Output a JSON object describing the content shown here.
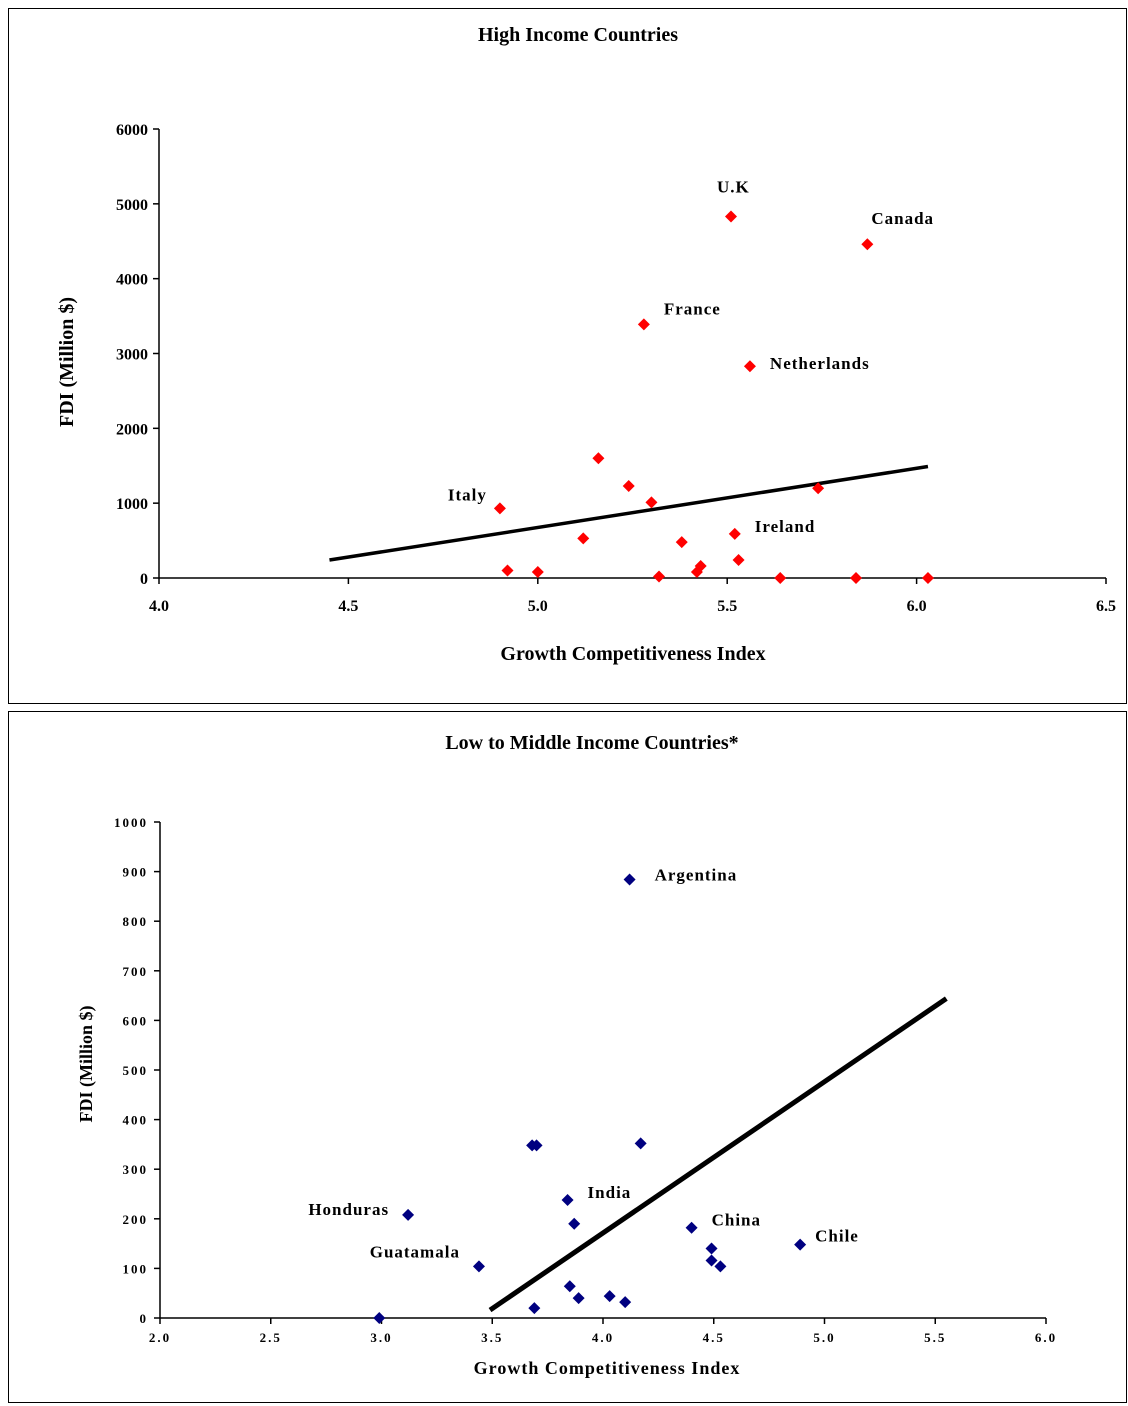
{
  "chart_data": [
    {
      "type": "scatter",
      "title": "High Income Countries",
      "xlabel": "Growth Competitiveness Index",
      "ylabel": "FDI (Million $)",
      "xlim": [
        4.0,
        6.5
      ],
      "ylim": [
        0,
        6000
      ],
      "x_ticks": [
        "4.0",
        "4.5",
        "5.0",
        "5.5",
        "6.0",
        "6.5"
      ],
      "y_ticks": [
        "0",
        "1000",
        "2000",
        "3000",
        "4000",
        "5000",
        "6000"
      ],
      "marker_color": "#ff0000",
      "grid": false,
      "points": [
        {
          "x": 5.51,
          "y": 4830,
          "label": "U.K"
        },
        {
          "x": 5.87,
          "y": 4460,
          "label": "Canada"
        },
        {
          "x": 5.28,
          "y": 3390,
          "label": "France"
        },
        {
          "x": 5.56,
          "y": 2830,
          "label": "Netherlands"
        },
        {
          "x": 4.9,
          "y": 930,
          "label": "Italy"
        },
        {
          "x": 5.52,
          "y": 590,
          "label": "Ireland"
        },
        {
          "x": 5.16,
          "y": 1600
        },
        {
          "x": 5.24,
          "y": 1230
        },
        {
          "x": 5.3,
          "y": 1010
        },
        {
          "x": 5.74,
          "y": 1200
        },
        {
          "x": 5.12,
          "y": 530
        },
        {
          "x": 5.38,
          "y": 480
        },
        {
          "x": 4.92,
          "y": 100
        },
        {
          "x": 5.0,
          "y": 80
        },
        {
          "x": 5.32,
          "y": 20
        },
        {
          "x": 5.42,
          "y": 80
        },
        {
          "x": 5.43,
          "y": 160
        },
        {
          "x": 5.53,
          "y": 240
        },
        {
          "x": 5.64,
          "y": 0
        },
        {
          "x": 5.84,
          "y": 0
        },
        {
          "x": 6.03,
          "y": 0
        }
      ],
      "trendline": {
        "x": [
          4.45,
          6.03
        ],
        "y": [
          240,
          1490
        ]
      }
    },
    {
      "type": "scatter",
      "title": "Low to Middle Income Countries*",
      "xlabel": "Growth Competitiveness Index",
      "ylabel": "FDI (Million $)",
      "xlim": [
        2.0,
        6.0
      ],
      "ylim": [
        0,
        1000
      ],
      "x_ticks": [
        "2.0",
        "2.5",
        "3.0",
        "3.5",
        "4.0",
        "4.5",
        "5.0",
        "5.5",
        "6.0"
      ],
      "y_ticks": [
        "0",
        "100",
        "200",
        "300",
        "400",
        "500",
        "600",
        "700",
        "800",
        "900",
        "1000"
      ],
      "marker_color": "#000080",
      "grid": false,
      "points": [
        {
          "x": 4.12,
          "y": 884,
          "label": "Argentina"
        },
        {
          "x": 3.84,
          "y": 238,
          "label": "India"
        },
        {
          "x": 3.12,
          "y": 208,
          "label": "Honduras"
        },
        {
          "x": 4.4,
          "y": 182,
          "label": "China"
        },
        {
          "x": 4.89,
          "y": 148,
          "label": "Chile"
        },
        {
          "x": 3.44,
          "y": 104,
          "label": "Guatamala"
        },
        {
          "x": 3.68,
          "y": 348
        },
        {
          "x": 3.7,
          "y": 348
        },
        {
          "x": 4.17,
          "y": 352
        },
        {
          "x": 3.87,
          "y": 190
        },
        {
          "x": 4.49,
          "y": 140
        },
        {
          "x": 4.49,
          "y": 116
        },
        {
          "x": 4.53,
          "y": 104
        },
        {
          "x": 3.85,
          "y": 64
        },
        {
          "x": 3.89,
          "y": 40
        },
        {
          "x": 4.03,
          "y": 44
        },
        {
          "x": 4.1,
          "y": 32
        },
        {
          "x": 3.69,
          "y": 20
        },
        {
          "x": 2.99,
          "y": 0
        }
      ],
      "trendline": {
        "x": [
          3.49,
          5.55
        ],
        "y": [
          16,
          644
        ]
      }
    }
  ]
}
